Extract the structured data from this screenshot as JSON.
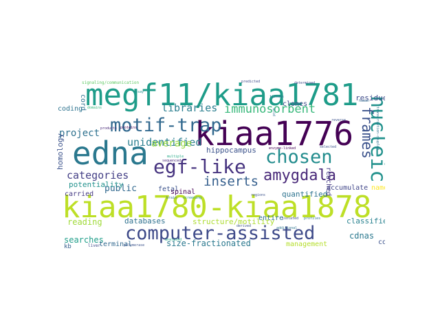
{
  "words": [
    "megf11/kiaa1781",
    "kiaa1776",
    "edna",
    "kiaa1780-kiaa1878",
    "computer-assisted",
    "motif-trap",
    "egf-like",
    "nucleic",
    "chosen",
    "amygdala",
    "inserts",
    "immunosorbent",
    "frames",
    "libraries",
    "unidentified",
    "categories",
    "project",
    "average",
    "hippocampus",
    "public",
    "potentiality",
    "homology",
    "carried",
    "quantified",
    "accumulate",
    "named",
    "reading",
    "databases",
    "structure/motility",
    "classified",
    "searches",
    "cdnas",
    "collect",
    "size-fractionated",
    "terminal",
    "management",
    "coding",
    "cord",
    "fetal",
    "spinal",
    "entire",
    "reached",
    "clones",
    "residues",
    "kb",
    "liver",
    "signaling/communication",
    "domains",
    "products",
    "proteins",
    "assay",
    "tissues",
    "determined",
    "brain",
    "screening",
    "regions",
    "isolated",
    "profiles",
    "derived",
    "sequenced",
    "analyzed",
    "polymerase",
    "enzyme-linked",
    "selected",
    "additional",
    "multiple",
    "predicted",
    "acid",
    "transcription-coupled",
    "reverse",
    "human"
  ]
}
